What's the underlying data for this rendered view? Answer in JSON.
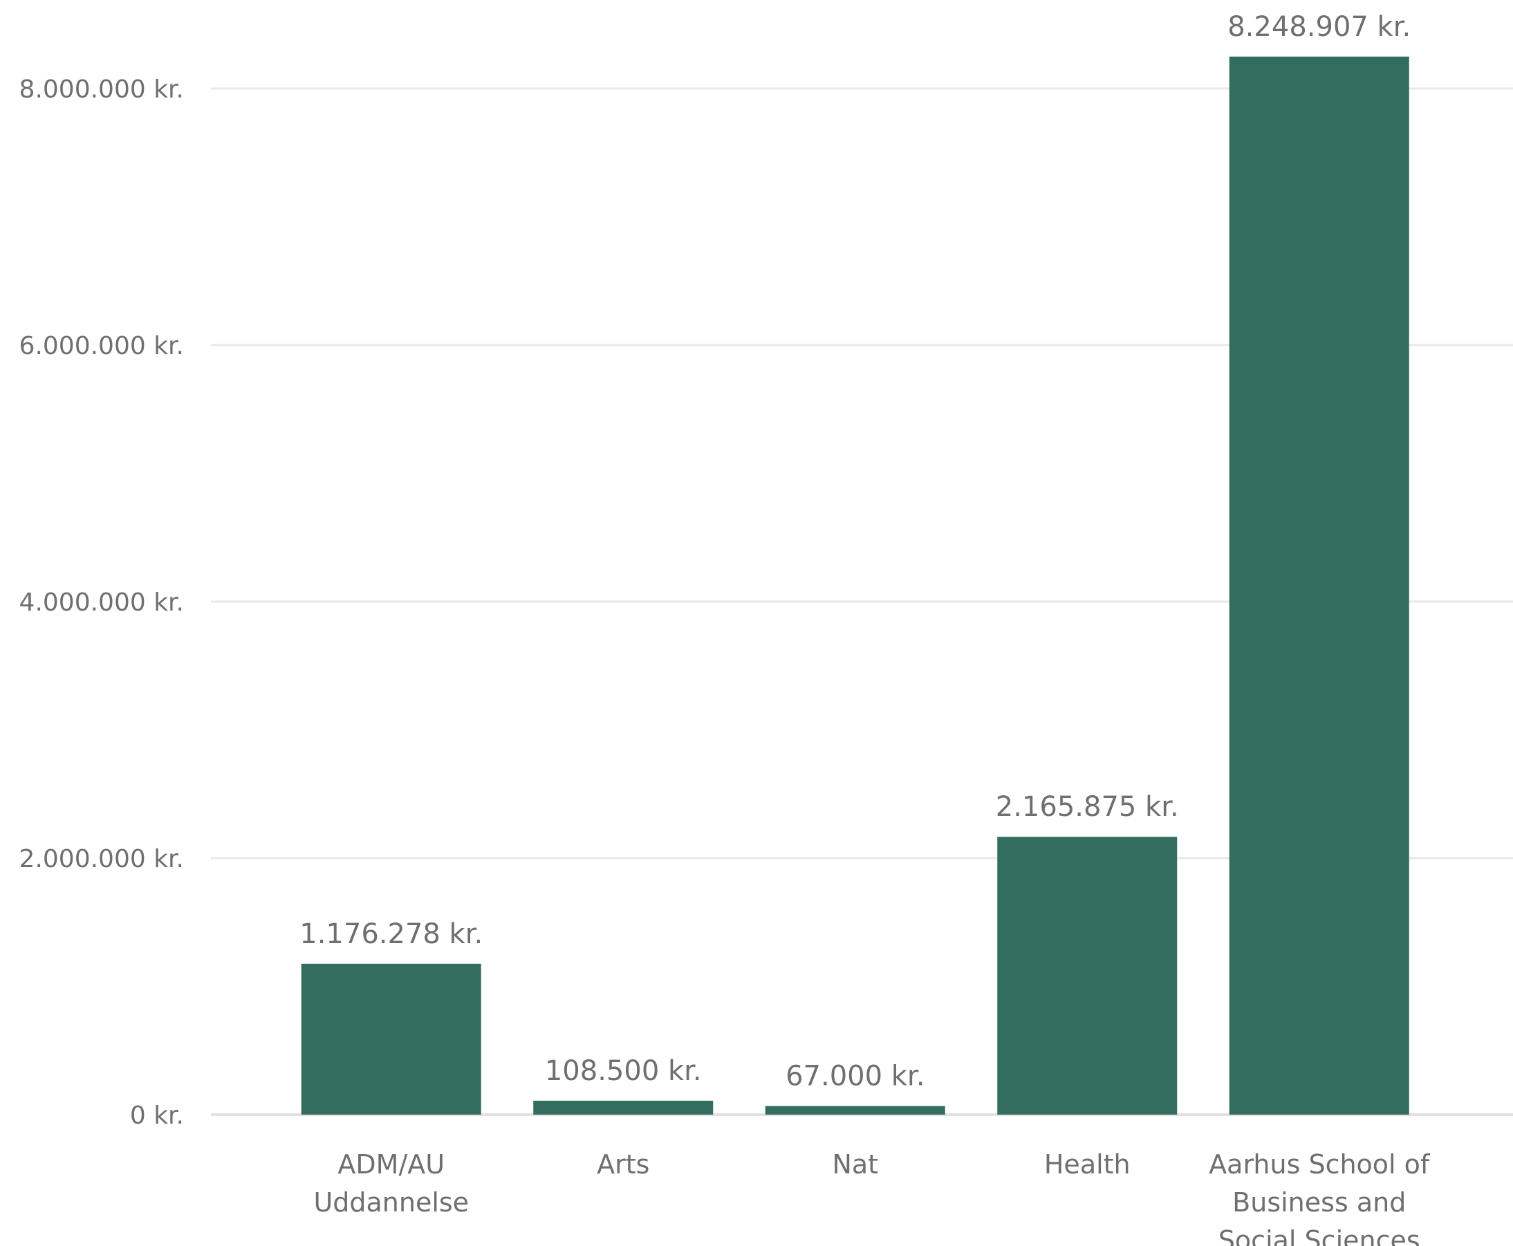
{
  "chart_data": {
    "type": "bar",
    "title": "",
    "xlabel": "",
    "ylabel": "",
    "categories": [
      [
        "ADM/AU",
        "Uddannelse"
      ],
      [
        "Arts"
      ],
      [
        "Nat"
      ],
      [
        "Health"
      ],
      [
        "Aarhus School of",
        "Business and",
        "Social Sciences"
      ]
    ],
    "values": [
      1176278,
      108500,
      67000,
      2165875,
      8248907
    ],
    "value_labels": [
      "1.176.278 kr.",
      "108.500 kr.",
      "67.000 kr.",
      "2.165.875 kr.",
      "8.248.907 kr."
    ],
    "y_ticks": [
      0,
      2000000,
      4000000,
      6000000,
      8000000
    ],
    "y_tick_labels": [
      "0 kr.",
      "2.000.000 kr.",
      "4.000.000 kr.",
      "6.000.000 kr.",
      "8.000.000 kr."
    ],
    "ylim": [
      0,
      8248907
    ],
    "grid": true,
    "legend": "none",
    "bar_color": "#336d5f"
  }
}
